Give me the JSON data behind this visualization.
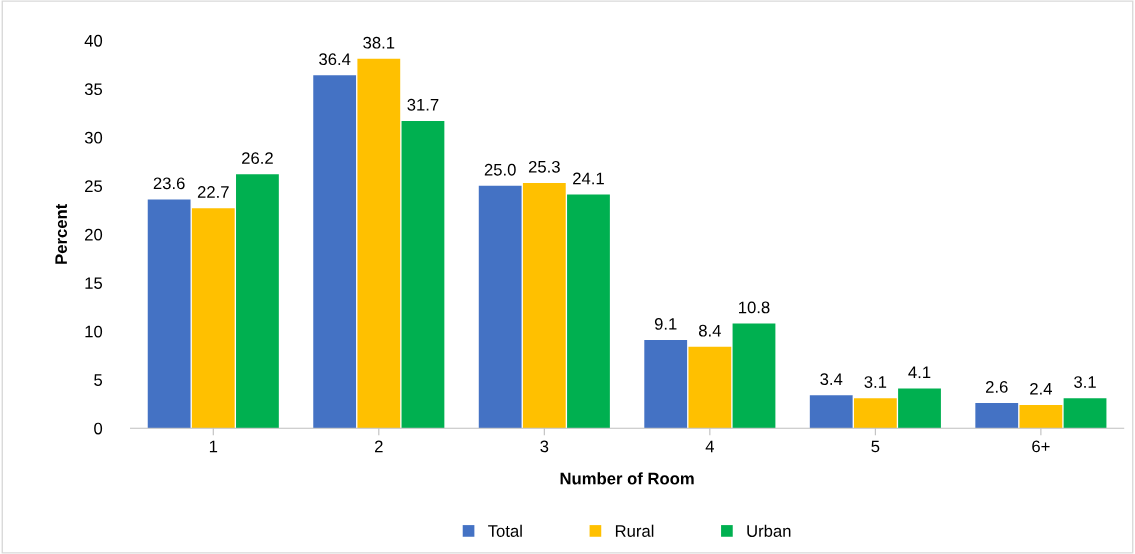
{
  "chart_data": {
    "type": "bar",
    "xlabel": "Number of Room",
    "ylabel": "Percent",
    "categories": [
      "1",
      "2",
      "3",
      "4",
      "5",
      "6+"
    ],
    "series": [
      {
        "name": "Total",
        "color": "#4472c4",
        "values": [
          23.6,
          36.4,
          25.0,
          9.1,
          3.4,
          2.6
        ],
        "value_labels": [
          "23.6",
          "36.4",
          "25.0",
          "9.1",
          "3.4",
          "2.6"
        ]
      },
      {
        "name": "Rural",
        "color": "#ffc000",
        "values": [
          22.7,
          38.1,
          25.3,
          8.4,
          3.1,
          2.4
        ],
        "value_labels": [
          "22.7",
          "38.1",
          "25.3",
          "8.4",
          "3.1",
          "2.4"
        ]
      },
      {
        "name": "Urban",
        "color": "#00b050",
        "values": [
          26.2,
          31.7,
          24.1,
          10.8,
          4.1,
          3.1
        ],
        "value_labels": [
          "26.2",
          "31.7",
          "24.1",
          "10.8",
          "4.1",
          "3.1"
        ]
      }
    ],
    "ylim": [
      0,
      40
    ],
    "yticks": [
      0,
      5,
      10,
      15,
      20,
      25,
      30,
      35,
      40
    ],
    "legend": "bottom",
    "grid": false
  }
}
